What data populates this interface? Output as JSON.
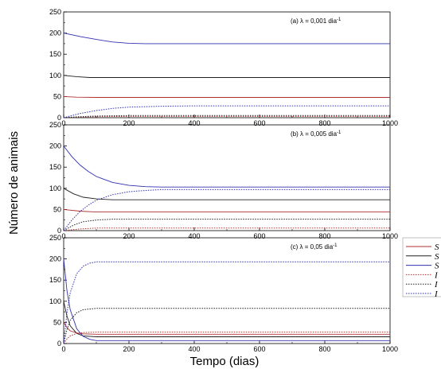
{
  "ylabel": "Número de animais",
  "xlabel": "Tempo (dias)",
  "chart_data": [
    {
      "type": "line",
      "annotation": "(a) λ = 0,001 dia",
      "annotation_sup": "-1",
      "xlim": [
        0,
        1000
      ],
      "ylim": [
        0,
        250
      ],
      "xticks": [
        0,
        200,
        400,
        600,
        800,
        1000
      ],
      "yticks": [
        0,
        50,
        100,
        150,
        200,
        250
      ],
      "series": [
        {
          "color": "#b03030",
          "dash": "solid",
          "x": [
            0,
            40,
            100,
            200,
            1000
          ],
          "y": [
            50,
            48.5,
            48,
            48,
            48
          ]
        },
        {
          "color": "#202020",
          "dash": "solid",
          "x": [
            0,
            40,
            80,
            150,
            1000
          ],
          "y": [
            100,
            97,
            95,
            95,
            95
          ]
        },
        {
          "color": "#3030b0",
          "dash": "solid",
          "x": [
            0,
            50,
            100,
            150,
            200,
            250,
            300,
            1000
          ],
          "y": [
            200,
            192,
            185,
            179,
            176,
            175,
            175,
            175
          ]
        },
        {
          "color": "#b03030",
          "dash": "dotted",
          "x": [
            0,
            50,
            100,
            200,
            300,
            1000
          ],
          "y": [
            0,
            1.5,
            2.5,
            3,
            3,
            3
          ]
        },
        {
          "color": "#202020",
          "dash": "dotted",
          "x": [
            0,
            50,
            100,
            200,
            300,
            1000
          ],
          "y": [
            0,
            2.5,
            4,
            5,
            5,
            5
          ]
        },
        {
          "color": "#3030b0",
          "dash": "dotted",
          "x": [
            0,
            50,
            100,
            150,
            200,
            300,
            400,
            1000
          ],
          "y": [
            0,
            10,
            17,
            22,
            25,
            27,
            28,
            28
          ]
        }
      ]
    },
    {
      "type": "line",
      "annotation": "(b) λ = 0,005 dia",
      "annotation_sup": "-1",
      "xlim": [
        0,
        1000
      ],
      "ylim": [
        0,
        250
      ],
      "xticks": [
        0,
        200,
        400,
        600,
        800,
        1000
      ],
      "yticks": [
        0,
        50,
        100,
        150,
        200,
        250
      ],
      "series": [
        {
          "color": "#b03030",
          "dash": "solid",
          "x": [
            0,
            50,
            100,
            200,
            1000
          ],
          "y": [
            50,
            46,
            44,
            44,
            44
          ]
        },
        {
          "color": "#202020",
          "dash": "solid",
          "x": [
            0,
            30,
            60,
            100,
            150,
            200,
            1000
          ],
          "y": [
            100,
            87,
            79,
            75,
            73,
            73,
            73
          ]
        },
        {
          "color": "#3030b0",
          "dash": "solid",
          "x": [
            0,
            25,
            50,
            75,
            100,
            150,
            200,
            250,
            300,
            1000
          ],
          "y": [
            200,
            175,
            155,
            140,
            128,
            114,
            107,
            104,
            103,
            103
          ]
        },
        {
          "color": "#b03030",
          "dash": "dotted",
          "x": [
            0,
            50,
            100,
            200,
            1000
          ],
          "y": [
            0,
            4,
            6,
            6,
            6
          ]
        },
        {
          "color": "#202020",
          "dash": "dotted",
          "x": [
            0,
            30,
            60,
            100,
            150,
            200,
            1000
          ],
          "y": [
            0,
            13,
            21,
            25,
            27,
            27,
            27
          ]
        },
        {
          "color": "#3030b0",
          "dash": "dotted",
          "x": [
            0,
            25,
            50,
            75,
            100,
            150,
            200,
            250,
            300,
            1000
          ],
          "y": [
            0,
            25,
            45,
            60,
            72,
            85,
            92,
            95,
            97,
            97
          ]
        }
      ]
    },
    {
      "type": "line",
      "annotation": "(c) λ = 0,05 dia",
      "annotation_sup": "-1",
      "xlim": [
        0,
        1000
      ],
      "ylim": [
        0,
        250
      ],
      "xticks": [
        0,
        200,
        400,
        600,
        800,
        1000
      ],
      "yticks": [
        0,
        50,
        100,
        150,
        200,
        250
      ],
      "series": [
        {
          "color": "#b03030",
          "dash": "solid",
          "x": [
            0,
            10,
            20,
            40,
            60,
            100,
            1000
          ],
          "y": [
            50,
            38,
            30,
            25,
            23,
            22,
            22
          ]
        },
        {
          "color": "#202020",
          "dash": "solid",
          "x": [
            0,
            10,
            20,
            40,
            60,
            100,
            1000
          ],
          "y": [
            100,
            65,
            42,
            24,
            18,
            16,
            16
          ]
        },
        {
          "color": "#3030b0",
          "dash": "solid",
          "x": [
            0,
            10,
            20,
            40,
            60,
            80,
            100,
            1000
          ],
          "y": [
            200,
            125,
            80,
            35,
            17,
            10,
            7,
            7
          ]
        },
        {
          "color": "#b03030",
          "dash": "dotted",
          "x": [
            0,
            10,
            20,
            40,
            60,
            100,
            1000
          ],
          "y": [
            0,
            11,
            18,
            24,
            26,
            27,
            27
          ]
        },
        {
          "color": "#202020",
          "dash": "dotted",
          "x": [
            0,
            10,
            20,
            40,
            60,
            100,
            1000
          ],
          "y": [
            0,
            33,
            55,
            73,
            80,
            83,
            83
          ]
        },
        {
          "color": "#3030b0",
          "dash": "dotted",
          "x": [
            0,
            10,
            20,
            40,
            60,
            80,
            100,
            1000
          ],
          "y": [
            0,
            72,
            120,
            165,
            183,
            190,
            193,
            193
          ]
        }
      ]
    }
  ],
  "legend": {
    "placement": "right",
    "entries": [
      {
        "label": "S",
        "color": "#b03030",
        "dash": "solid"
      },
      {
        "label": "S",
        "color": "#202020",
        "dash": "solid"
      },
      {
        "label": "S",
        "color": "#3030b0",
        "dash": "solid"
      },
      {
        "label": "I",
        "color": "#b03030",
        "dash": "dotted"
      },
      {
        "label": "I",
        "color": "#202020",
        "dash": "dotted"
      },
      {
        "label": "I",
        "color": "#3030b0",
        "dash": "dotted"
      }
    ]
  }
}
